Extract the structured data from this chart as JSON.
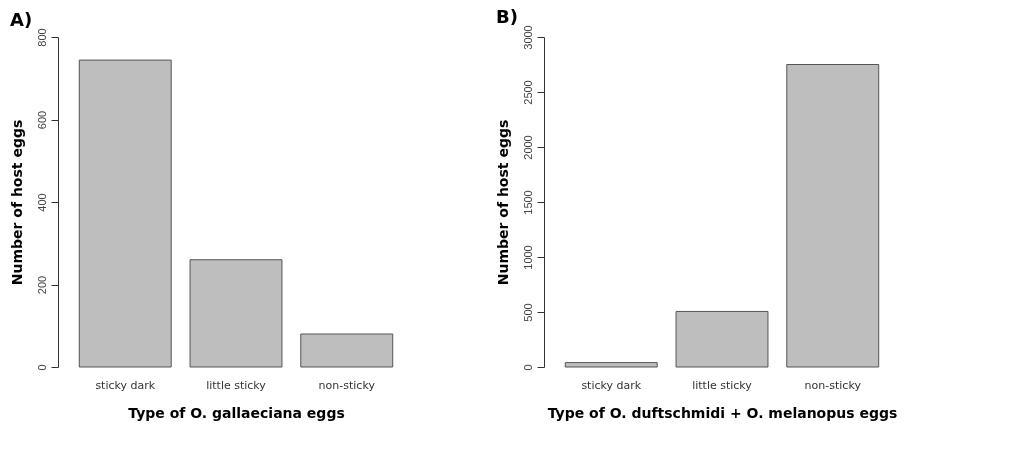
{
  "chart_data": [
    {
      "type": "bar",
      "title": "A)",
      "xlabel": "Type of O. gallaeciana eggs",
      "ylabel": "Number of host eggs",
      "categories": [
        "sticky dark",
        "little sticky",
        "non-sticky"
      ],
      "values": [
        744,
        260,
        80
      ],
      "color": "#bebebe",
      "ylim": [
        0,
        800
      ],
      "yticks": [
        0,
        200,
        400,
        600,
        800
      ],
      "grid": false
    },
    {
      "type": "bar",
      "title": "B)",
      "xlabel": "Type of O. duftschmidi + O. melanopus eggs",
      "ylabel": "Number of host eggs",
      "categories": [
        "sticky dark",
        "little sticky",
        "non-sticky"
      ],
      "values": [
        40,
        505,
        2750
      ],
      "color": "#bebebe",
      "ylim": [
        0,
        3000
      ],
      "yticks": [
        0,
        500,
        1000,
        1500,
        2000,
        2500,
        3000
      ],
      "grid": false
    }
  ]
}
